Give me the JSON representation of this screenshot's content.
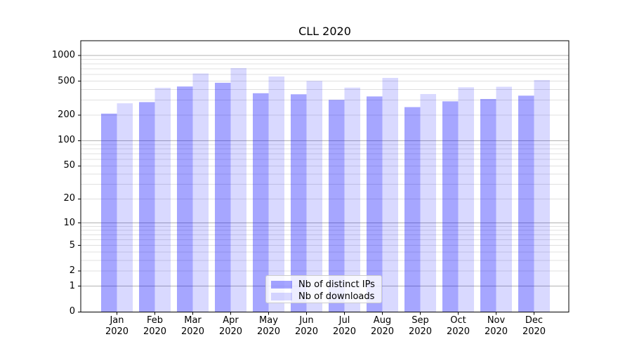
{
  "chart_data": {
    "type": "bar",
    "title": "CLL 2020",
    "xlabel": "",
    "ylabel": "",
    "scale": "log1p",
    "grid": "horizontal major (decades) + faint minor (2-9 per decade)",
    "background_color": "#ffffff",
    "axis_color": "#000000",
    "major_grid_color": "#b2b2b2",
    "minor_grid_color": "#e0e0e0",
    "y_ticks": [
      0,
      1,
      2,
      5,
      10,
      20,
      50,
      100,
      200,
      500,
      1000
    ],
    "ylim": [
      0,
      1490
    ],
    "months": [
      "Jan",
      "Feb",
      "Mar",
      "Apr",
      "May",
      "Jun",
      "Jul",
      "Aug",
      "Sep",
      "Oct",
      "Nov",
      "Dec"
    ],
    "year": "2020",
    "categories": [
      "Jan 2020",
      "Feb 2020",
      "Mar 2020",
      "Apr 2020",
      "May 2020",
      "Jun 2020",
      "Jul 2020",
      "Aug 2020",
      "Sep 2020",
      "Oct 2020",
      "Nov 2020",
      "Dec 2020"
    ],
    "series": [
      {
        "name": "Nb of distinct IPs",
        "color": "#0000ff",
        "alpha": 0.35,
        "values": [
          208,
          284,
          433,
          479,
          361,
          351,
          302,
          331,
          248,
          290,
          309,
          338
        ]
      },
      {
        "name": "Nb of downloads",
        "color": "#0000ff",
        "alpha": 0.15,
        "values": [
          275,
          418,
          615,
          712,
          567,
          503,
          420,
          546,
          353,
          424,
          430,
          516
        ]
      }
    ],
    "legend_position": "bottom-center-inside"
  }
}
